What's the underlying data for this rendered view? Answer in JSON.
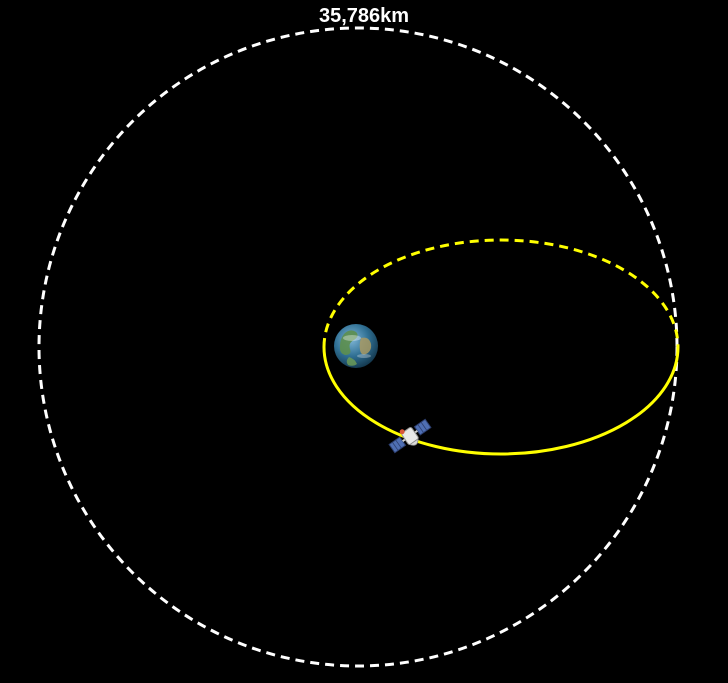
{
  "diagram": {
    "altitude_label": "35,786km",
    "colors": {
      "background": "#000000",
      "geo_orbit": "#ffffff",
      "transfer_orbit": "#ffff00",
      "label": "#ffffff",
      "ocean": "#2f6f93",
      "land": "#4f8a5a"
    },
    "icons": {
      "planet": "earth-icon",
      "spacecraft": "satellite-icon"
    }
  }
}
